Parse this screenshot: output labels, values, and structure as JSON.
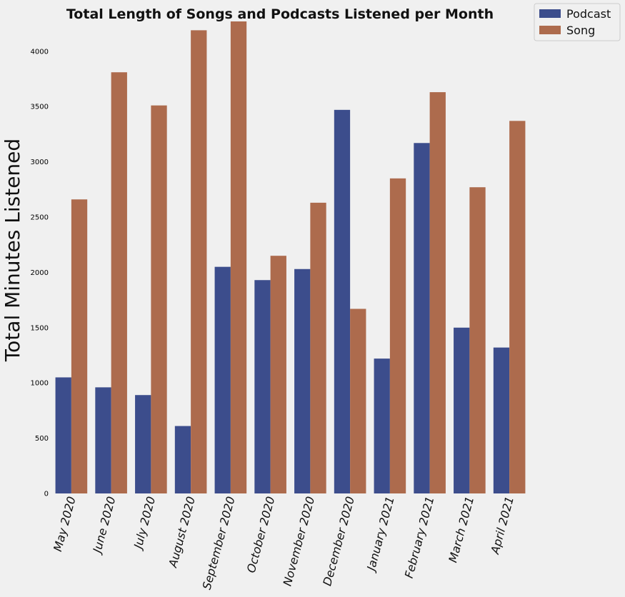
{
  "chart_data": {
    "type": "bar",
    "title": "Total Length of Songs and Podcasts Listened per Month",
    "xlabel": "",
    "ylabel": "Total Minutes Listened",
    "ylim": [
      0,
      4270
    ],
    "yticks": [
      0,
      500,
      1000,
      1500,
      2000,
      2500,
      3000,
      3500,
      4000
    ],
    "categories": [
      "May 2020",
      "June 2020",
      "July 2020",
      "August 2020",
      "September 2020",
      "October 2020",
      "November 2020",
      "December 2020",
      "January 2021",
      "February 2021",
      "March 2021",
      "April 2021"
    ],
    "series": [
      {
        "name": "Podcast",
        "color": "#3c4d8c",
        "values": [
          1050,
          960,
          890,
          610,
          2050,
          1930,
          2030,
          3470,
          1220,
          3170,
          1500,
          1320
        ]
      },
      {
        "name": "Song",
        "color": "#ad6b4d",
        "values": [
          2660,
          3810,
          3510,
          4190,
          4270,
          2150,
          2630,
          1670,
          2850,
          3630,
          2770,
          3370
        ]
      }
    ],
    "legend": "top-right",
    "grid": false
  }
}
